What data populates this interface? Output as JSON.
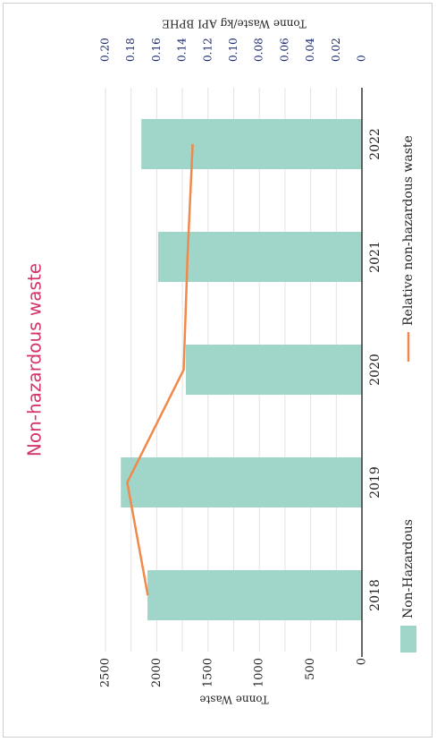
{
  "chart_data": {
    "type": "bar_line",
    "title": "Non-hazardous waste",
    "ylabel": "Tonne Waste",
    "y2label": "Tonne Waste/kg API BPHE",
    "categories": [
      "2018",
      "2019",
      "2020",
      "2021",
      "2022"
    ],
    "series": [
      {
        "name": "Non-Hazardous",
        "type": "bar",
        "color": "#9fd6c9",
        "values": [
          2090,
          2350,
          1716,
          1986,
          2150
        ]
      },
      {
        "name": "Relative non-hazardous waste",
        "type": "line",
        "axis": "y2",
        "color": "#f0894a",
        "values": [
          0.167,
          0.183,
          0.139,
          0.136,
          0.132
        ]
      }
    ],
    "ylim": [
      0,
      2500
    ],
    "yticks": [
      0,
      500,
      1000,
      1500,
      2000,
      2500
    ],
    "y2lim": [
      0,
      0.2
    ],
    "y2ticks": [
      0,
      0.02,
      0.04,
      0.06,
      0.08,
      {
        "value": 0.1,
        "label": "0.10"
      },
      0.12,
      0.14,
      0.16,
      0.18,
      {
        "value": 0.2,
        "label": "0.20"
      }
    ],
    "grid": true
  }
}
